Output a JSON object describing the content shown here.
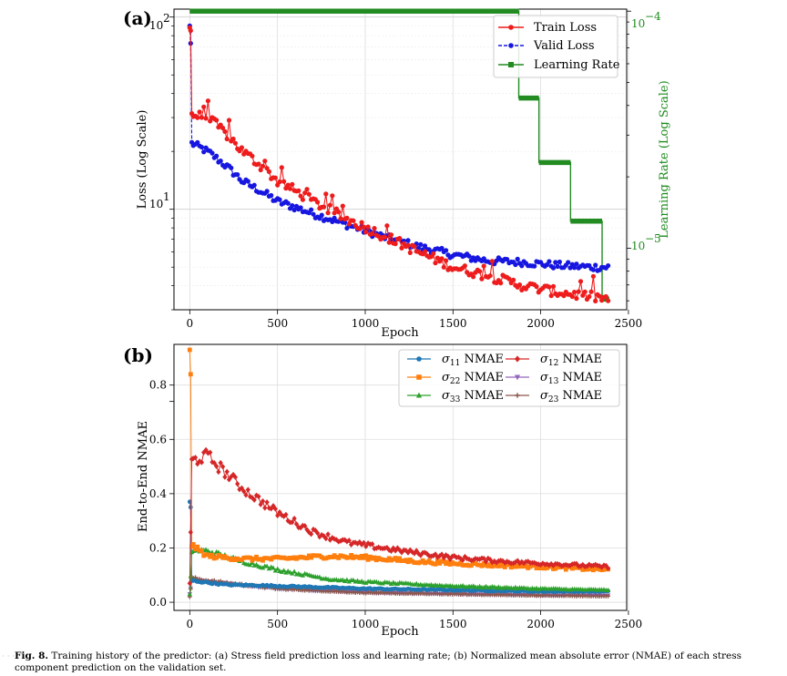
{
  "chart_data": [
    {
      "panel": "(a)",
      "type": "line",
      "xlabel": "Epoch",
      "ylabel": "Loss (Log Scale)",
      "ylabel_right": "Learning Rate (Log Scale)",
      "xlim": [
        -90,
        2490
      ],
      "x_ticks": [
        "0",
        "500",
        "1000",
        "1500",
        "2000",
        "2500"
      ],
      "ylim_log": [
        3.0,
        110
      ],
      "y_tick_labels": {
        "p2": "2",
        "p1": "1"
      },
      "y2lim_log": [
        5.5e-06,
        0.000102
      ],
      "y2_tick_labels": {
        "p4": "−4",
        "p5": "−5"
      },
      "tick_base": "10",
      "legend": [
        "Train Loss",
        "Valid Loss",
        "Learning Rate"
      ],
      "series": [
        {
          "name": "Train Loss",
          "color": "#ee1c1c",
          "style": "solid",
          "marker": "circle",
          "anchors": [
            [
              0,
              88
            ],
            [
              5,
              85
            ],
            [
              12,
              31
            ],
            [
              100,
              30
            ],
            [
              300,
              20
            ],
            [
              500,
              14
            ],
            [
              700,
              11
            ],
            [
              900,
              8.8
            ],
            [
              1100,
              7.3
            ],
            [
              1300,
              6.0
            ],
            [
              1500,
              5.0
            ],
            [
              1700,
              4.5
            ],
            [
              1900,
              4.0
            ],
            [
              2100,
              3.7
            ],
            [
              2300,
              3.5
            ],
            [
              2390,
              3.4
            ]
          ]
        },
        {
          "name": "Valid Loss",
          "color": "#1616e0",
          "style": "dashed",
          "marker": "circle",
          "anchors": [
            [
              0,
              90
            ],
            [
              5,
              73
            ],
            [
              12,
              22
            ],
            [
              100,
              20
            ],
            [
              300,
              14
            ],
            [
              500,
              11
            ],
            [
              700,
              9.5
            ],
            [
              900,
              8.3
            ],
            [
              1100,
              7.2
            ],
            [
              1300,
              6.4
            ],
            [
              1500,
              5.8
            ],
            [
              1700,
              5.4
            ],
            [
              1900,
              5.3
            ],
            [
              2100,
              5.1
            ],
            [
              2300,
              5.0
            ],
            [
              2390,
              5.0
            ]
          ]
        },
        {
          "name": "Learning Rate",
          "color": "#228b22",
          "style": "solid",
          "marker": "square",
          "steps": [
            [
              0,
              0.0001
            ],
            [
              1875,
              4.3e-05
            ],
            [
              1990,
              2.3e-05
            ],
            [
              2170,
              1.3e-05
            ],
            [
              2350,
              6.1e-06
            ],
            [
              2390,
              6.1e-06
            ]
          ]
        }
      ]
    },
    {
      "panel": "(b)",
      "type": "line",
      "xlabel": "Epoch",
      "ylabel": "End-to-End NMAE",
      "xlim": [
        -90,
        2490
      ],
      "ylim": [
        -0.03,
        0.95
      ],
      "x_ticks": [
        "0",
        "500",
        "1000",
        "1500",
        "2000",
        "2500"
      ],
      "y_ticks": [
        "0.0",
        "0.2",
        "0.4",
        "0.6",
        "0.8"
      ],
      "legend_sigma": "σ",
      "legend_suffix": "NMAE",
      "legend_subscripts": [
        "11",
        "22",
        "33",
        "12",
        "13",
        "23"
      ],
      "series": [
        {
          "name": "σ11 NMAE",
          "color": "#1f77b4",
          "marker": "circle",
          "anchors": [
            [
              0,
              0.37
            ],
            [
              5,
              0.35
            ],
            [
              10,
              0.08
            ],
            [
              200,
              0.065
            ],
            [
              500,
              0.06
            ],
            [
              1000,
              0.05
            ],
            [
              1500,
              0.045
            ],
            [
              2000,
              0.04
            ],
            [
              2390,
              0.04
            ]
          ]
        },
        {
          "name": "σ22 NMAE",
          "color": "#ff7f0e",
          "marker": "square",
          "anchors": [
            [
              0,
              0.93
            ],
            [
              5,
              0.84
            ],
            [
              12,
              0.21
            ],
            [
              100,
              0.17
            ],
            [
              300,
              0.16
            ],
            [
              500,
              0.16
            ],
            [
              800,
              0.17
            ],
            [
              1000,
              0.165
            ],
            [
              1300,
              0.15
            ],
            [
              1600,
              0.14
            ],
            [
              2000,
              0.13
            ],
            [
              2390,
              0.12
            ]
          ]
        },
        {
          "name": "σ33 NMAE",
          "color": "#2ca02c",
          "marker": "triangle",
          "anchors": [
            [
              0,
              0.03
            ],
            [
              12,
              0.19
            ],
            [
              100,
              0.19
            ],
            [
              300,
              0.15
            ],
            [
              500,
              0.12
            ],
            [
              800,
              0.085
            ],
            [
              1000,
              0.075
            ],
            [
              1500,
              0.06
            ],
            [
              2000,
              0.05
            ],
            [
              2390,
              0.045
            ]
          ]
        },
        {
          "name": "σ12 NMAE",
          "color": "#d62728",
          "marker": "diamond",
          "anchors": [
            [
              0,
              0.07
            ],
            [
              12,
              0.52
            ],
            [
              50,
              0.53
            ],
            [
              100,
              0.54
            ],
            [
              200,
              0.48
            ],
            [
              300,
              0.42
            ],
            [
              500,
              0.33
            ],
            [
              700,
              0.26
            ],
            [
              900,
              0.22
            ],
            [
              1200,
              0.19
            ],
            [
              1500,
              0.165
            ],
            [
              1800,
              0.15
            ],
            [
              2100,
              0.14
            ],
            [
              2390,
              0.13
            ]
          ]
        },
        {
          "name": "σ13 NMAE",
          "color": "#9467bd",
          "marker": "triangle-down",
          "anchors": [
            [
              0,
              0.03
            ],
            [
              12,
              0.08
            ],
            [
              100,
              0.075
            ],
            [
              500,
              0.05
            ],
            [
              1000,
              0.035
            ],
            [
              1500,
              0.03
            ],
            [
              2000,
              0.025
            ],
            [
              2390,
              0.025
            ]
          ]
        },
        {
          "name": "σ23 NMAE",
          "color": "#8c564b",
          "marker": "plus",
          "anchors": [
            [
              0,
              0.02
            ],
            [
              12,
              0.09
            ],
            [
              100,
              0.08
            ],
            [
              500,
              0.05
            ],
            [
              1000,
              0.035
            ],
            [
              1500,
              0.03
            ],
            [
              2000,
              0.025
            ],
            [
              2390,
              0.022
            ]
          ]
        }
      ]
    }
  ],
  "caption": {
    "label": "Fig. 8.",
    "text": "Training history of the predictor: (a) Stress field prediction loss and learning rate; (b) Normalized mean absolute error (NMAE) of each stress component prediction on the validation set."
  }
}
